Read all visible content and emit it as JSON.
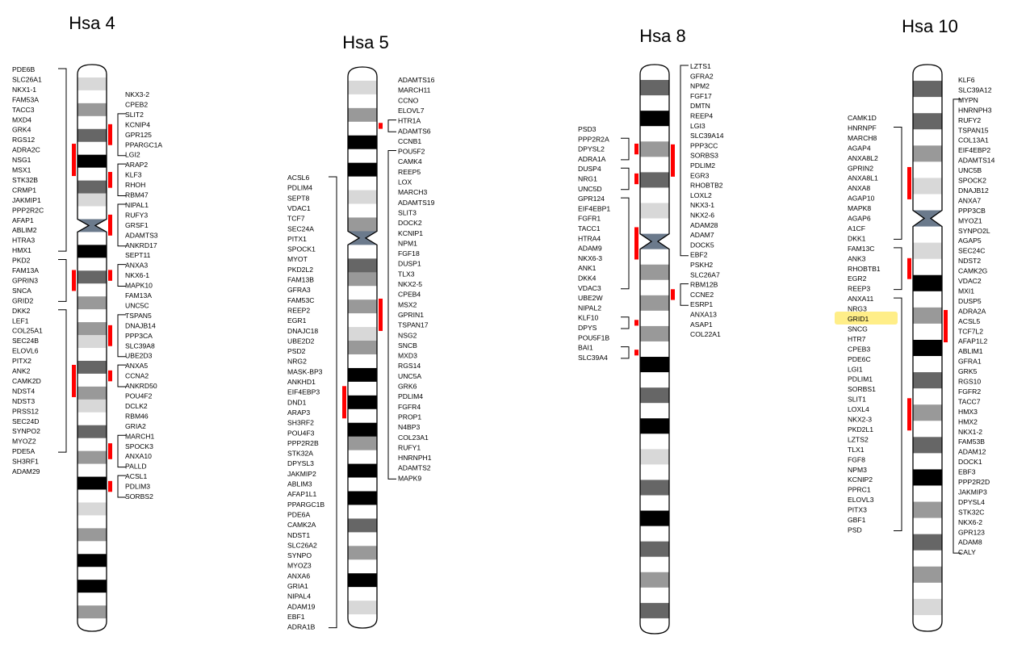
{
  "colors": {
    "black": "#000000",
    "dark": "#666666",
    "mid": "#999999",
    "light": "#d8d8d8",
    "centromere": "#6b7a8c",
    "marker": "#ff0000",
    "highlight": "#ffee88"
  },
  "chromosomes": [
    {
      "title": "Hsa 4",
      "bands": [
        "white",
        "light",
        "white",
        "mid",
        "white",
        "dark",
        "white",
        "black",
        "white",
        "dark",
        "light",
        "white",
        "cen",
        "white",
        "black",
        "white",
        "dark",
        "white",
        "mid",
        "white",
        "mid",
        "light",
        "white",
        "dark",
        "white",
        "mid",
        "light",
        "white",
        "dark",
        "white",
        "mid",
        "white",
        "black",
        "white",
        "light",
        "white",
        "mid",
        "white",
        "black",
        "white",
        "black",
        "white",
        "mid",
        "white"
      ],
      "left_genes": [
        "PDE6B",
        "SLC26A1",
        "NKX1-1",
        "FAM53A",
        "TACC3",
        "MXD4",
        "GRK4",
        "RGS12",
        "ADRA2C",
        "NSG1",
        "MSX1",
        "STK32B",
        "CRMP1",
        "JAKMIP1",
        "PPP2R2C",
        "AFAP1",
        "ABLIM2",
        "HTRA3",
        "HMX1",
        "PKD2",
        "FAM13A",
        "GPRIN3",
        "SNCA",
        "GRID2",
        "DKK2",
        "LEF1",
        "COL25A1",
        "SEC24B",
        "ELOVL6",
        "PITX2",
        "ANK2",
        "CAMK2D",
        "NDST4",
        "NDST3",
        "PRSS12",
        "SEC24D",
        "SYNPO2",
        "MYOZ2",
        "PDE5A",
        "SH3RF1",
        "ADAM29"
      ],
      "right_genes": [
        "NKX3-2",
        "CPEB2",
        "SLIT2",
        "KCNIP4",
        "GPR125",
        "PPARGC1A",
        "LGI2",
        "ARAP2",
        "KLF3",
        "RHOH",
        "RBM47",
        "NIPAL1",
        "RUFY3",
        "GRSF1",
        "ADAMTS3",
        "ANKRD17",
        "SEPT11",
        "ANXA3",
        "NKX6-1",
        "MAPK10",
        "FAM13A",
        "UNC5C",
        "TSPAN5",
        "DNAJB14",
        "PPP3CA",
        "SLC39A8",
        "UBE2D3",
        "ANXA5",
        "CCNA2",
        "ANKRD50",
        "POU4F2",
        "DCLK2",
        "RBM46",
        "GRIA2",
        "MARCH1",
        "SPOCK3",
        "ANXA10",
        "PALLD",
        "ACSL1",
        "PDLIM3",
        "SORBS2"
      ]
    },
    {
      "title": "Hsa 5",
      "bands": [
        "white",
        "light",
        "white",
        "mid",
        "white",
        "black",
        "white",
        "black",
        "white",
        "light",
        "white",
        "mid",
        "cen",
        "white",
        "dark",
        "mid",
        "white",
        "mid",
        "white",
        "light",
        "mid",
        "white",
        "black",
        "white",
        "black",
        "white",
        "black",
        "mid",
        "white",
        "black",
        "white",
        "black",
        "white",
        "dark",
        "white",
        "mid",
        "white",
        "black",
        "white",
        "light",
        "white"
      ],
      "left_genes": [
        "ACSL6",
        "PDLIM4",
        "SEPT8",
        "VDAC1",
        "TCF7",
        "SEC24A",
        "PITX1",
        "SPOCK1",
        "MYOT",
        "PKD2L2",
        "FAM13B",
        "GFRA3",
        "FAM53C",
        "REEP2",
        "EGR1",
        "DNAJC18",
        "UBE2D2",
        "PSD2",
        "NRG2",
        "MASK-BP3",
        "ANKHD1",
        "EIF4EBP3",
        "DND1",
        "ARAP3",
        "SH3RF2",
        "POU4F3",
        "PPP2R2B",
        "STK32A",
        "DPYSL3",
        "JAKMIP2",
        "ABLIM3",
        "AFAP1L1",
        "PPARGC1B",
        "PDE6A",
        "CAMK2A",
        "NDST1",
        "SLC26A2",
        "SYNPO",
        "MYOZ3",
        "ANXA6",
        "GRIA1",
        "NIPAL4",
        "ADAM19",
        "EBF1",
        "ADRA1B"
      ],
      "right_genes": [
        "ADAMTS16",
        "MARCH11",
        "CCNO",
        "ELOVL7",
        "HTR1A",
        "ADAMTS6",
        "CCNB1",
        "POU5F2",
        "CAMK4",
        "REEP5",
        "LOX",
        "MARCH3",
        "ADAMTS19",
        "SLIT3",
        "DOCK2",
        "KCNIP1",
        "NPM1",
        "FGF18",
        "DUSP1",
        "TLX3",
        "NKX2-5",
        "CPEB4",
        "MSX2",
        "GPRIN1",
        "TSPAN17",
        "NSG2",
        "SNCB",
        "MXD3",
        "RGS14",
        "UNC5A",
        "GRK6",
        "PDLIM4",
        "FGFR4",
        "PROP1",
        "N4BP3",
        "COL23A1",
        "RUFY1",
        "HNRNPH1",
        "ADAMTS2",
        "MAPK9"
      ]
    },
    {
      "title": "Hsa 8",
      "bands": [
        "white",
        "dark",
        "white",
        "black",
        "white",
        "mid",
        "white",
        "dark",
        "white",
        "light",
        "white",
        "cen",
        "white",
        "mid",
        "white",
        "mid",
        "white",
        "mid",
        "white",
        "black",
        "white",
        "dark",
        "white",
        "black",
        "white",
        "light",
        "white",
        "dark",
        "white",
        "black",
        "white",
        "dark",
        "white",
        "mid",
        "white",
        "dark",
        "white"
      ],
      "left_genes": [
        "PSD3",
        "PPP2R2A",
        "DPYSL2",
        "ADRA1A",
        "DUSP4",
        "NRG1",
        "UNC5D",
        "GPR124",
        "EIF4EBP1",
        "FGFR1",
        "TACC1",
        "HTRA4",
        "ADAM9",
        "NKX6-3",
        "ANK1",
        "DKK4",
        "VDAC3",
        "UBE2W",
        "NIPAL2",
        "KLF10",
        "DPYS",
        "POU5F1B",
        "BAI1",
        "SLC39A4"
      ],
      "right_genes": [
        "LZTS1",
        "GFRA2",
        "NPM2",
        "FGF17",
        "DMTN",
        "REEP4",
        "LGI3",
        "SLC39A14",
        "PPP3CC",
        "SORBS3",
        "PDLIM2",
        "EGR3",
        "RHOBTB2",
        "LOXL2",
        "NKX3-1",
        "NKX2-6",
        "ADAM28",
        "ADAM7",
        "DOCK5",
        "EBF2",
        "PSKH2",
        "SLC26A7",
        "RBM12B",
        "CCNE2",
        "ESRP1",
        "ANXA13",
        "ASAP1",
        "COL22A1"
      ]
    },
    {
      "title": "Hsa 10",
      "bands": [
        "white",
        "dark",
        "white",
        "dark",
        "white",
        "mid",
        "white",
        "light",
        "white",
        "cen",
        "white",
        "light",
        "white",
        "black",
        "white",
        "mid",
        "white",
        "black",
        "white",
        "dark",
        "white",
        "mid",
        "white",
        "dark",
        "white",
        "black",
        "white",
        "mid",
        "white",
        "dark",
        "white",
        "mid",
        "white",
        "light",
        "white"
      ],
      "left_genes": [
        "CAMK1D",
        "HNRNPF",
        "MARCH8",
        "AGAP4",
        "ANXA8L2",
        "GPRIN2",
        "ANXA8L1",
        "ANXA8",
        "AGAP10",
        "MAPK8",
        "AGAP6",
        "A1CF",
        "DKK1",
        "FAM13C",
        "ANK3",
        "RHOBTB1",
        "EGR2",
        "REEP3",
        "ANXA11",
        "NRG3",
        "GRID1",
        "SNCG",
        "HTR7",
        "CPEB3",
        "PDE6C",
        "LGI1",
        "PDLIM1",
        "SORBS1",
        "SLIT1",
        "LOXL4",
        "NKX2-3",
        "PKD2L1",
        "LZTS2",
        "TLX1",
        "FGF8",
        "NPM3",
        "KCNIP2",
        "PPRC1",
        "ELOVL3",
        "PITX3",
        "GBF1",
        "PSD"
      ],
      "right_genes": [
        "KLF6",
        "SLC39A12",
        "MYPN",
        "HNRNPH3",
        "RUFY2",
        "TSPAN15",
        "COL13A1",
        "EIF4EBP2",
        "ADAMTS14",
        "UNC5B",
        "SPOCK2",
        "DNAJB12",
        "ANXA7",
        "PPP3CB",
        "MYOZ1",
        "SYNPO2L",
        "AGAP5",
        "SEC24C",
        "NDST2",
        "CAMK2G",
        "VDAC2",
        "MXI1",
        "DUSP5",
        "ADRA2A",
        "ACSL5",
        "TCF7L2",
        "AFAP1L2",
        "ABLIM1",
        "GFRA1",
        "GRK5",
        "RGS10",
        "FGFR2",
        "TACC7",
        "HMX3",
        "HMX2",
        "NKX1-2",
        "FAM53B",
        "ADAM12",
        "DOCK1",
        "EBF3",
        "PPP2R2D",
        "JAKMIP3",
        "DPYSL4",
        "STK32C",
        "NKX6-2",
        "GPR123",
        "ADAM8",
        "CALY"
      ],
      "highlighted_gene": "GRID1"
    }
  ]
}
